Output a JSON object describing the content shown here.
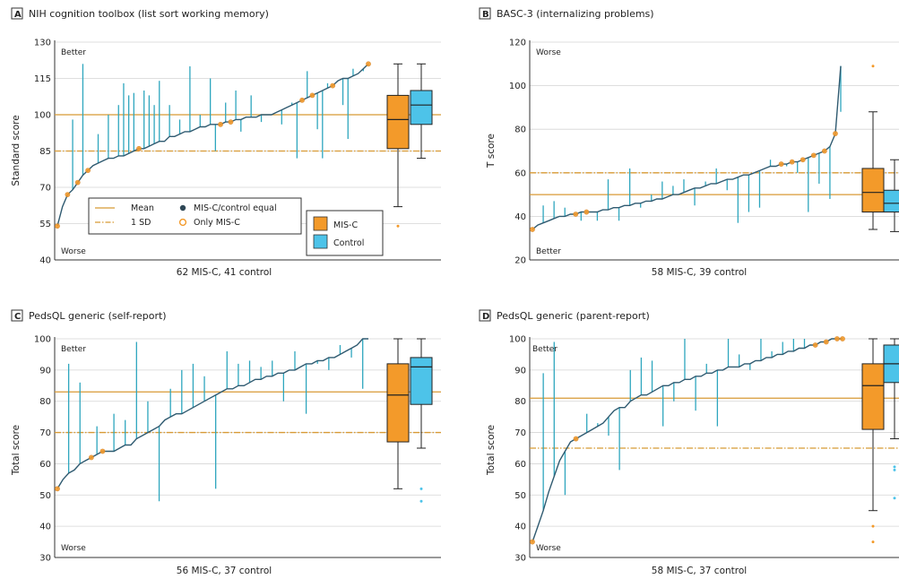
{
  "colors": {
    "misc": "#F39A2A",
    "misc_edge": "#D8862A",
    "control": "#4DC3E9",
    "spoke": "#2EA6BE",
    "curve": "#2F5A70",
    "equal_dot": "#2E4756",
    "grid": "#D4D4D4",
    "mean_line": "#D89A35"
  },
  "legend": {
    "mean": "Mean",
    "sd": "1 SD",
    "equal": "MIS-C/control equal",
    "only": "Only MIS-C",
    "misc": "MIS-C",
    "control": "Control"
  },
  "chart_data": [
    {
      "id": "A",
      "type": "line",
      "title": "NIH cognition toolbox (list sort working memory)",
      "ylabel": "Standard score",
      "caption": "62 MIS-C, 41 control",
      "top_note": "Better",
      "bottom_note": "Worse",
      "ylim": [
        40,
        130
      ],
      "yticks": [
        40,
        55,
        70,
        85,
        100,
        115,
        130
      ],
      "mean": 100,
      "sd_line": 85,
      "curve_y": [
        54,
        62,
        67,
        69,
        72,
        75,
        77,
        79,
        80,
        81,
        82,
        82,
        83,
        83,
        84,
        85,
        86,
        86,
        87,
        88,
        89,
        89,
        91,
        91,
        92,
        93,
        93,
        94,
        95,
        95,
        96,
        96,
        96,
        97,
        97,
        98,
        98,
        99,
        99,
        99,
        100,
        100,
        100,
        101,
        102,
        103,
        104,
        105,
        106,
        107,
        108,
        109,
        110,
        111,
        112,
        114,
        115,
        115,
        116,
        117,
        119,
        121
      ],
      "spokes": [
        [
          3,
          98
        ],
        [
          5,
          121
        ],
        [
          8,
          92
        ],
        [
          10,
          100
        ],
        [
          12,
          104
        ],
        [
          13,
          113
        ],
        [
          14,
          108
        ],
        [
          15,
          109
        ],
        [
          17,
          110
        ],
        [
          18,
          108
        ],
        [
          19,
          104
        ],
        [
          20,
          114
        ],
        [
          22,
          104
        ],
        [
          24,
          98
        ],
        [
          26,
          120
        ],
        [
          28,
          100
        ],
        [
          30,
          115
        ],
        [
          33,
          105
        ],
        [
          35,
          110
        ],
        [
          38,
          108
        ],
        [
          40,
          97
        ],
        [
          42,
          100
        ],
        [
          44,
          96
        ],
        [
          46,
          105
        ],
        [
          49,
          118
        ],
        [
          51,
          94
        ],
        [
          53,
          113
        ],
        [
          56,
          104
        ],
        [
          58,
          119
        ],
        [
          60,
          118
        ],
        [
          31,
          85
        ],
        [
          36,
          93
        ],
        [
          47,
          82
        ],
        [
          52,
          82
        ],
        [
          57,
          90
        ]
      ],
      "misc_box": {
        "min": 62,
        "q1": 86,
        "median": 98,
        "q3": 108,
        "max": 121,
        "outliers": [
          54
        ]
      },
      "control_box": {
        "min": 82,
        "q1": 96,
        "median": 104,
        "q3": 110,
        "max": 121,
        "outliers": []
      }
    },
    {
      "id": "B",
      "type": "line",
      "title": "BASC-3 (internalizing problems)",
      "ylabel": "T score",
      "caption": "58 MIS-C, 39 control",
      "top_note": "Worse",
      "bottom_note": "Better",
      "ylim": [
        20,
        120
      ],
      "yticks": [
        20,
        40,
        60,
        80,
        100,
        120
      ],
      "mean": 50,
      "sd_line": 60,
      "curve_y": [
        34,
        36,
        37,
        38,
        39,
        40,
        40,
        41,
        41,
        42,
        42,
        42,
        42,
        43,
        43,
        44,
        44,
        45,
        45,
        46,
        46,
        47,
        47,
        48,
        48,
        49,
        50,
        50,
        51,
        52,
        53,
        53,
        54,
        55,
        55,
        56,
        57,
        57,
        58,
        59,
        59,
        60,
        61,
        62,
        63,
        63,
        64,
        64,
        65,
        65,
        66,
        67,
        68,
        69,
        70,
        72,
        78,
        109
      ],
      "spokes": [
        [
          2,
          45
        ],
        [
          4,
          47
        ],
        [
          6,
          44
        ],
        [
          9,
          38
        ],
        [
          12,
          38
        ],
        [
          14,
          57
        ],
        [
          16,
          38
        ],
        [
          18,
          62
        ],
        [
          20,
          44
        ],
        [
          22,
          50
        ],
        [
          24,
          56
        ],
        [
          26,
          54
        ],
        [
          28,
          57
        ],
        [
          30,
          45
        ],
        [
          32,
          56
        ],
        [
          34,
          62
        ],
        [
          36,
          52
        ],
        [
          38,
          37
        ],
        [
          40,
          42
        ],
        [
          42,
          44
        ],
        [
          44,
          66
        ],
        [
          47,
          63
        ],
        [
          49,
          60
        ],
        [
          51,
          42
        ],
        [
          53,
          55
        ],
        [
          55,
          48
        ],
        [
          57,
          88
        ]
      ],
      "misc_box": {
        "min": 34,
        "q1": 42,
        "median": 51,
        "q3": 62,
        "max": 88,
        "outliers": [
          109
        ]
      },
      "control_box": {
        "min": 33,
        "q1": 42,
        "median": 46,
        "q3": 52,
        "max": 66,
        "outliers": []
      }
    },
    {
      "id": "C",
      "type": "line",
      "title": "PedsQL generic (self-report)",
      "ylabel": "Total score",
      "caption": "56 MIS-C, 37 control",
      "top_note": "Better",
      "bottom_note": "Worse",
      "ylim": [
        30,
        100
      ],
      "yticks": [
        30,
        40,
        50,
        60,
        70,
        80,
        90,
        100
      ],
      "mean": 83,
      "sd_line": 70,
      "curve_y": [
        52,
        55,
        57,
        58,
        60,
        61,
        62,
        63,
        64,
        64,
        64,
        65,
        66,
        66,
        68,
        69,
        70,
        71,
        72,
        74,
        75,
        76,
        76,
        77,
        78,
        79,
        80,
        81,
        82,
        83,
        84,
        84,
        85,
        85,
        86,
        87,
        87,
        88,
        88,
        89,
        89,
        90,
        90,
        91,
        92,
        92,
        93,
        93,
        94,
        94,
        95,
        96,
        97,
        98,
        100,
        100
      ],
      "spokes": [
        [
          2,
          92
        ],
        [
          4,
          86
        ],
        [
          7,
          72
        ],
        [
          10,
          76
        ],
        [
          12,
          74
        ],
        [
          14,
          99
        ],
        [
          16,
          80
        ],
        [
          18,
          48
        ],
        [
          20,
          84
        ],
        [
          22,
          90
        ],
        [
          24,
          92
        ],
        [
          26,
          88
        ],
        [
          28,
          52
        ],
        [
          30,
          96
        ],
        [
          32,
          92
        ],
        [
          34,
          93
        ],
        [
          36,
          91
        ],
        [
          38,
          93
        ],
        [
          40,
          80
        ],
        [
          42,
          96
        ],
        [
          44,
          76
        ],
        [
          46,
          92
        ],
        [
          48,
          90
        ],
        [
          50,
          98
        ],
        [
          52,
          94
        ],
        [
          54,
          84
        ],
        [
          55,
          100
        ]
      ],
      "misc_box": {
        "min": 52,
        "q1": 67,
        "median": 82,
        "q3": 92,
        "max": 100,
        "outliers": []
      },
      "control_box": {
        "min": 65,
        "q1": 79,
        "median": 91,
        "q3": 94,
        "max": 100,
        "outliers": [
          48,
          52
        ]
      }
    },
    {
      "id": "D",
      "type": "line",
      "title": "PedsQL generic (parent-report)",
      "ylabel": "Total score",
      "caption": "58 MIS-C, 37 control",
      "top_note": "Better",
      "bottom_note": "Worse",
      "ylim": [
        30,
        100
      ],
      "yticks": [
        30,
        40,
        50,
        60,
        70,
        80,
        90,
        100
      ],
      "mean": 81,
      "sd_line": 65,
      "curve_y": [
        35,
        40,
        45,
        51,
        56,
        61,
        64,
        67,
        68,
        69,
        70,
        71,
        72,
        73,
        75,
        77,
        78,
        78,
        80,
        81,
        82,
        82,
        83,
        84,
        85,
        85,
        86,
        86,
        87,
        87,
        88,
        88,
        89,
        89,
        90,
        90,
        91,
        91,
        91,
        92,
        92,
        93,
        93,
        94,
        94,
        95,
        95,
        96,
        96,
        97,
        97,
        98,
        98,
        99,
        99,
        100,
        100,
        100
      ],
      "spokes": [
        [
          2,
          89
        ],
        [
          4,
          99
        ],
        [
          6,
          50
        ],
        [
          10,
          76
        ],
        [
          12,
          73
        ],
        [
          14,
          69
        ],
        [
          16,
          58
        ],
        [
          18,
          90
        ],
        [
          20,
          94
        ],
        [
          22,
          93
        ],
        [
          24,
          72
        ],
        [
          26,
          80
        ],
        [
          28,
          100
        ],
        [
          30,
          77
        ],
        [
          32,
          92
        ],
        [
          34,
          72
        ],
        [
          36,
          100
        ],
        [
          38,
          95
        ],
        [
          40,
          90
        ],
        [
          42,
          100
        ],
        [
          44,
          96
        ],
        [
          46,
          99
        ],
        [
          48,
          100
        ],
        [
          50,
          100
        ]
      ],
      "misc_box": {
        "min": 45,
        "q1": 71,
        "median": 85,
        "q3": 92,
        "max": 100,
        "outliers": [
          35,
          40
        ]
      },
      "control_box": {
        "min": 68,
        "q1": 86,
        "median": 92,
        "q3": 98,
        "max": 100,
        "outliers": [
          49,
          58,
          59
        ]
      }
    }
  ]
}
